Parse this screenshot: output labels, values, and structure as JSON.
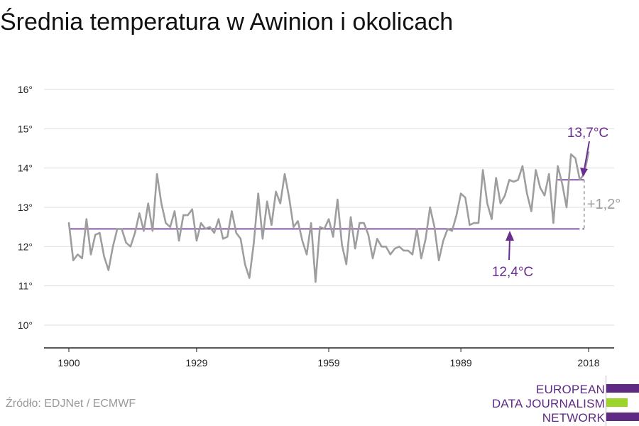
{
  "title": "Średnia temperatura w Awinion i okolicach",
  "source": "Źródło: EDJNet / ECMWF",
  "logo": {
    "lines": [
      "EUROPEAN",
      "DATA JOURNALISM",
      "NETWORK"
    ],
    "colors": {
      "purple": "#5e2a84",
      "green": "#9cd42a"
    }
  },
  "colors": {
    "series": "#9e9e9e",
    "baseline": "#5e2a84",
    "annotation_purple": "#6a2d91",
    "annotation_gray": "#9e9e9e",
    "grid": "#dddddd",
    "axis": "#222222"
  },
  "annotations": {
    "recent_mean_label": "13,7°C",
    "baseline_label": "12,4°C",
    "difference_label": "+1,2°"
  },
  "chart_data": {
    "type": "line",
    "title": "Średnia temperatura w Awinion i okolicach",
    "xlabel": "",
    "ylabel": "",
    "xlim": [
      1900,
      2018
    ],
    "ylim": [
      10,
      16
    ],
    "x_ticks": [
      1900,
      1929,
      1959,
      1989,
      2018
    ],
    "x_tick_labels": [
      "1900",
      "1929",
      "1959",
      "1989",
      "2018"
    ],
    "y_ticks": [
      10,
      11,
      12,
      13,
      14,
      15,
      16
    ],
    "y_tick_labels": [
      "10°",
      "11°",
      "12°",
      "13°",
      "14°",
      "15°",
      "16°"
    ],
    "grid": true,
    "series": [
      {
        "years": [
          1900,
          1901,
          1902,
          1903,
          1904,
          1905,
          1906,
          1907,
          1908,
          1909,
          1910,
          1911,
          1912,
          1913,
          1914,
          1915,
          1916,
          1917,
          1918,
          1919,
          1920,
          1921,
          1922,
          1923,
          1924,
          1925,
          1926,
          1927,
          1928,
          1929,
          1930,
          1931,
          1932,
          1933,
          1934,
          1935,
          1936,
          1937,
          1938,
          1939,
          1940,
          1941,
          1942,
          1943,
          1944,
          1945,
          1946,
          1947,
          1948,
          1949,
          1950,
          1951,
          1952,
          1953,
          1954,
          1955,
          1956,
          1957,
          1958,
          1959,
          1960,
          1961,
          1962,
          1963,
          1964,
          1965,
          1966,
          1967,
          1968,
          1969,
          1970,
          1971,
          1972,
          1973,
          1974,
          1975,
          1976,
          1977,
          1978,
          1979,
          1980,
          1981,
          1982,
          1983,
          1984,
          1985,
          1986,
          1987,
          1988,
          1989,
          1990,
          1991,
          1992,
          1993,
          1994,
          1995,
          1996,
          1997,
          1998,
          1999,
          2000,
          2001,
          2002,
          2003,
          2004,
          2005,
          2006,
          2007,
          2008,
          2009,
          2010,
          2011,
          2012,
          2013,
          2014,
          2015,
          2016,
          2017,
          2018
        ],
        "values": [
          12.6,
          11.65,
          11.8,
          11.7,
          12.7,
          11.8,
          12.3,
          12.35,
          11.75,
          11.4,
          12.0,
          12.45,
          12.45,
          12.1,
          12.0,
          12.35,
          12.85,
          12.4,
          13.1,
          12.4,
          13.85,
          13.1,
          12.6,
          12.5,
          12.9,
          12.15,
          12.8,
          12.8,
          12.95,
          12.15,
          12.6,
          12.45,
          12.5,
          12.35,
          12.7,
          12.2,
          12.25,
          12.9,
          12.35,
          12.2,
          11.55,
          11.2,
          12.1,
          13.35,
          12.2,
          13.15,
          12.55,
          13.4,
          13.1,
          13.85,
          13.25,
          12.5,
          12.65,
          12.15,
          11.8,
          12.6,
          11.1,
          12.5,
          12.45,
          12.7,
          12.25,
          13.2,
          12.05,
          11.55,
          12.75,
          11.95,
          12.6,
          12.6,
          12.3,
          11.7,
          12.2,
          12.0,
          12.0,
          11.8,
          11.95,
          12.0,
          11.9,
          11.9,
          11.8,
          12.45,
          11.7,
          12.2,
          13.0,
          12.5,
          11.65,
          12.15,
          12.45,
          12.4,
          12.8,
          13.35,
          13.25,
          12.55,
          12.6,
          12.6,
          13.95,
          13.1,
          12.7,
          13.75,
          13.1,
          13.3,
          13.7,
          13.65,
          13.7,
          14.05,
          13.35,
          12.9,
          13.95,
          13.5,
          13.3,
          13.85,
          12.6,
          14.05,
          13.6,
          13.0,
          14.35,
          14.25,
          13.7,
          13.85,
          14.4
        ]
      }
    ],
    "reference_lines": [
      {
        "label": "12,4°C",
        "value": 12.45,
        "x_solid_end": 2015,
        "x_dashed_end": 2017
      },
      {
        "label": "13,7°C",
        "value": 13.7,
        "x_start": 2011,
        "x_end": 2017
      }
    ]
  }
}
